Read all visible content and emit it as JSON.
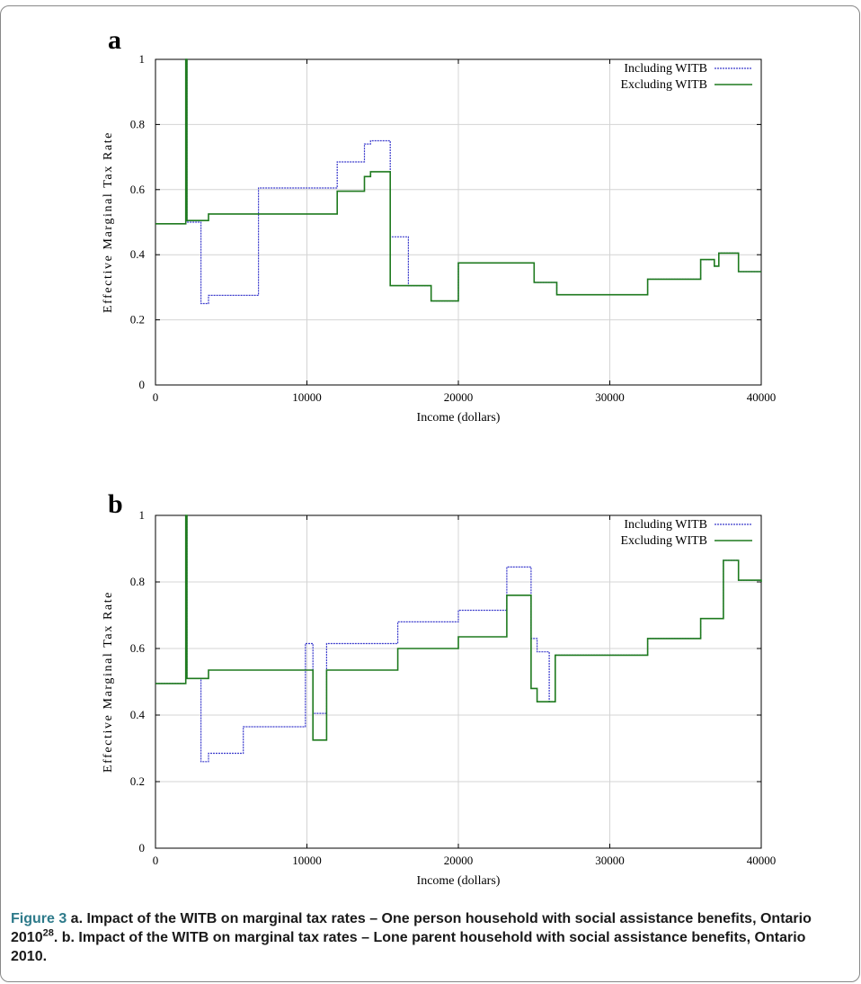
{
  "caption": {
    "label": "Figure 3",
    "part1": " a. Impact of the WITB on marginal tax rates – One person household with social assistance benefits, Ontario 2010",
    "sup": "28",
    "part2": ". b. Impact of the WITB on marginal tax rates – Lone parent household with social assistance benefits, Ontario 2010."
  },
  "colors": {
    "including": "#3a3acc",
    "excluding": "#1e7a1e",
    "grid": "#d4d4d4",
    "axis": "#000000"
  },
  "chart_data": [
    {
      "panel": "a",
      "type": "line",
      "step": true,
      "xlabel": "Income (dollars)",
      "ylabel": "Effective Marginal Tax Rate",
      "xlim": [
        0,
        40000
      ],
      "ylim": [
        0,
        1
      ],
      "xticks": [
        0,
        10000,
        20000,
        30000,
        40000
      ],
      "yticks": [
        0,
        0.2,
        0.4,
        0.6,
        0.8,
        1
      ],
      "grid": true,
      "legend": "top-right",
      "series": [
        {
          "name": "Including WITB",
          "color_key": "including",
          "x": [
            0,
            2000,
            2080,
            3000,
            3500,
            6800,
            12000,
            13800,
            14200,
            15500,
            16700,
            18200,
            20000,
            25000,
            26500,
            32500,
            36000,
            36900,
            37200,
            38500,
            40000
          ],
          "y": [
            0.495,
            1.0,
            0.5,
            0.25,
            0.275,
            0.605,
            0.685,
            0.74,
            0.75,
            0.455,
            0.305,
            0.258,
            0.375,
            0.315,
            0.277,
            0.325,
            0.385,
            0.365,
            0.405,
            0.348,
            0.348
          ]
        },
        {
          "name": "Excluding WITB",
          "color_key": "excluding",
          "x": [
            0,
            2000,
            2080,
            3500,
            12000,
            13800,
            14200,
            15500,
            18200,
            20000,
            25000,
            26500,
            32500,
            36000,
            36900,
            37200,
            38500,
            40000
          ],
          "y": [
            0.495,
            1.0,
            0.505,
            0.525,
            0.595,
            0.64,
            0.655,
            0.305,
            0.258,
            0.375,
            0.315,
            0.277,
            0.325,
            0.385,
            0.365,
            0.405,
            0.348,
            0.348
          ]
        }
      ]
    },
    {
      "panel": "b",
      "type": "line",
      "step": true,
      "xlabel": "Income (dollars)",
      "ylabel": "Effective Marginal Tax Rate",
      "xlim": [
        0,
        40000
      ],
      "ylim": [
        0,
        1
      ],
      "xticks": [
        0,
        10000,
        20000,
        30000,
        40000
      ],
      "yticks": [
        0,
        0.2,
        0.4,
        0.6,
        0.8,
        1
      ],
      "grid": true,
      "legend": "top-right",
      "series": [
        {
          "name": "Including WITB",
          "color_key": "including",
          "x": [
            0,
            2000,
            2080,
            3000,
            3500,
            5800,
            9900,
            10400,
            11300,
            16000,
            20000,
            23200,
            24800,
            25200,
            26000,
            26400,
            32500,
            36000,
            37500,
            38500,
            40000
          ],
          "y": [
            0.495,
            1.0,
            0.51,
            0.26,
            0.285,
            0.365,
            0.615,
            0.405,
            0.615,
            0.68,
            0.715,
            0.845,
            0.63,
            0.59,
            0.44,
            0.58,
            0.63,
            0.69,
            0.865,
            0.805,
            0.8
          ]
        },
        {
          "name": "Excluding WITB",
          "color_key": "excluding",
          "x": [
            0,
            2000,
            2080,
            3500,
            10400,
            11300,
            16000,
            20000,
            23200,
            24800,
            25200,
            26400,
            32500,
            36000,
            37500,
            38500,
            40000
          ],
          "y": [
            0.495,
            1.0,
            0.51,
            0.535,
            0.325,
            0.535,
            0.6,
            0.635,
            0.76,
            0.48,
            0.44,
            0.58,
            0.63,
            0.69,
            0.865,
            0.805,
            0.8
          ]
        }
      ]
    }
  ]
}
